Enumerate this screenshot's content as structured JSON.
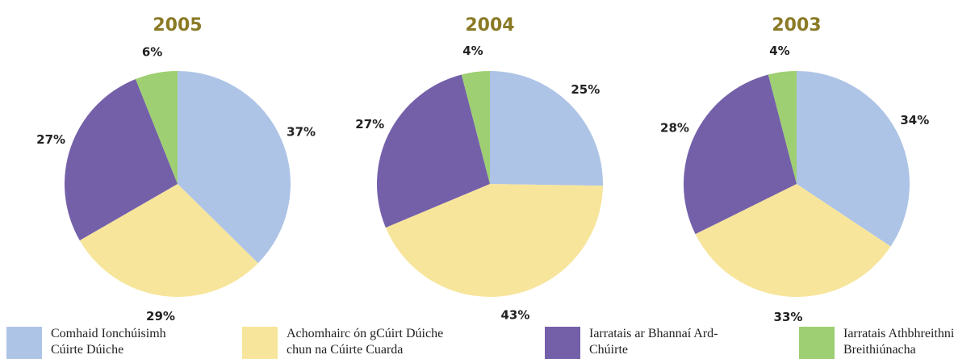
{
  "chart_data": [
    {
      "type": "pie",
      "title": "2005",
      "values": [
        37,
        29,
        27,
        6
      ],
      "value_labels": [
        "37%",
        "29%",
        "27%",
        "6%"
      ]
    },
    {
      "type": "pie",
      "title": "2004",
      "values": [
        25,
        43,
        27,
        4
      ],
      "value_labels": [
        "25%",
        "43%",
        "27%",
        "4%"
      ]
    },
    {
      "type": "pie",
      "title": "2003",
      "values": [
        34,
        33,
        28,
        4
      ],
      "value_labels": [
        "34%",
        "33%",
        "28%",
        "4%"
      ]
    }
  ],
  "legend": [
    {
      "label": "Comhaid Ionchúisimh Cúirte Dúiche",
      "color": "#aec4e6"
    },
    {
      "label": "Achomhairc ón gCúirt Dúiche chun na Cúirte Cuarda",
      "color": "#f7e59b"
    },
    {
      "label": "Iarratais ar Bhannaí Ard-Chúirte",
      "color": "#7460a9"
    },
    {
      "label": "Iarratais Athbhreithniú Breithiúnacha",
      "color": "#9ecf72"
    }
  ]
}
